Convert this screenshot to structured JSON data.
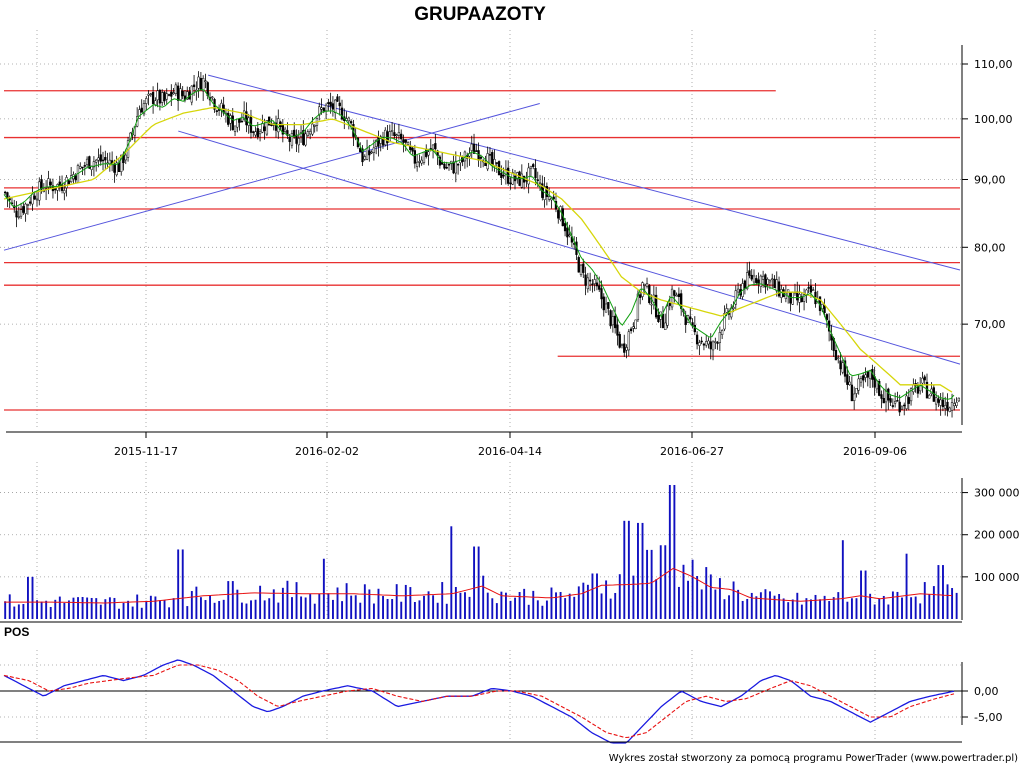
{
  "title": "GRUPAAZOTY",
  "footer": "Wykres został stworzony za pomocą programu PowerTrader (www.powertrader.pl)",
  "colors": {
    "resistance": "#e83030",
    "trendline": "#5555dd",
    "sma": "#d6d60a",
    "ema": "#10a010",
    "volume_bar": "#1010c0",
    "volume_avg": "#e81010",
    "pos_line": "#1a1ae0",
    "pos_signal": "#e81010"
  },
  "chart_data": [
    {
      "type": "candlestick",
      "title": "GRUPAAZOTY",
      "x_labels": [
        "2015-11-17",
        "2016-02-02",
        "2016-04-14",
        "2016-06-27",
        "2016-09-06"
      ],
      "y_ticks": [
        "70,00",
        "80,00",
        "90,00",
        "100,00",
        "110,00"
      ],
      "y_tick_values": [
        70,
        80,
        90,
        100,
        110
      ],
      "scale": "log",
      "grid": true,
      "close_series": [
        [
          0,
          88
        ],
        [
          10,
          85
        ],
        [
          20,
          86
        ],
        [
          30,
          88
        ],
        [
          40,
          89
        ],
        [
          55,
          89
        ],
        [
          70,
          91
        ],
        [
          85,
          93
        ],
        [
          100,
          93
        ],
        [
          115,
          92
        ],
        [
          125,
          96
        ],
        [
          135,
          102
        ],
        [
          150,
          104
        ],
        [
          160,
          103
        ],
        [
          170,
          105
        ],
        [
          180,
          104
        ],
        [
          190,
          106
        ],
        [
          200,
          107
        ],
        [
          210,
          103
        ],
        [
          220,
          101
        ],
        [
          230,
          99
        ],
        [
          240,
          100
        ],
        [
          250,
          98
        ],
        [
          260,
          99
        ],
        [
          270,
          100
        ],
        [
          280,
          97
        ],
        [
          290,
          96
        ],
        [
          300,
          97
        ],
        [
          310,
          100
        ],
        [
          320,
          102
        ],
        [
          330,
          102
        ],
        [
          340,
          101
        ],
        [
          350,
          98
        ],
        [
          360,
          93
        ],
        [
          370,
          95
        ],
        [
          380,
          97
        ],
        [
          390,
          97
        ],
        [
          400,
          96
        ],
        [
          410,
          93
        ],
        [
          420,
          94
        ],
        [
          430,
          95
        ],
        [
          440,
          92
        ],
        [
          450,
          92
        ],
        [
          460,
          93
        ],
        [
          470,
          95
        ],
        [
          480,
          94
        ],
        [
          490,
          92
        ],
        [
          500,
          91
        ],
        [
          510,
          90
        ],
        [
          520,
          90
        ],
        [
          530,
          91
        ],
        [
          540,
          88
        ],
        [
          550,
          87
        ],
        [
          560,
          84
        ],
        [
          570,
          80
        ],
        [
          580,
          76
        ],
        [
          590,
          75
        ],
        [
          600,
          73
        ],
        [
          610,
          70
        ],
        [
          620,
          67
        ],
        [
          630,
          70
        ],
        [
          640,
          75
        ],
        [
          650,
          73
        ],
        [
          660,
          70
        ],
        [
          670,
          74
        ],
        [
          680,
          72
        ],
        [
          690,
          69
        ],
        [
          700,
          68
        ],
        [
          710,
          67
        ],
        [
          720,
          70
        ],
        [
          730,
          72
        ],
        [
          740,
          75
        ],
        [
          750,
          76
        ],
        [
          760,
          76
        ],
        [
          770,
          75
        ],
        [
          780,
          74
        ],
        [
          790,
          73
        ],
        [
          800,
          73
        ],
        [
          810,
          74
        ],
        [
          820,
          72
        ],
        [
          830,
          68
        ],
        [
          840,
          65
        ],
        [
          850,
          62
        ],
        [
          860,
          63
        ],
        [
          870,
          64
        ],
        [
          880,
          62
        ],
        [
          890,
          61
        ],
        [
          900,
          61
        ],
        [
          910,
          62
        ],
        [
          920,
          63
        ],
        [
          930,
          62
        ],
        [
          940,
          61
        ],
        [
          950,
          61
        ],
        [
          955,
          62
        ]
      ],
      "sma_series": [
        [
          0,
          87
        ],
        [
          30,
          88
        ],
        [
          60,
          89
        ],
        [
          90,
          90
        ],
        [
          120,
          94
        ],
        [
          150,
          99
        ],
        [
          180,
          101
        ],
        [
          210,
          102
        ],
        [
          240,
          101
        ],
        [
          270,
          99
        ],
        [
          300,
          99
        ],
        [
          330,
          100
        ],
        [
          360,
          98
        ],
        [
          390,
          96
        ],
        [
          420,
          95
        ],
        [
          450,
          94
        ],
        [
          480,
          93
        ],
        [
          510,
          91
        ],
        [
          540,
          89
        ],
        [
          560,
          87
        ],
        [
          580,
          84
        ],
        [
          600,
          80
        ],
        [
          620,
          76
        ],
        [
          640,
          74
        ],
        [
          660,
          73
        ],
        [
          690,
          72
        ],
        [
          720,
          71
        ],
        [
          740,
          72
        ],
        [
          760,
          73
        ],
        [
          780,
          74
        ],
        [
          800,
          74
        ],
        [
          820,
          73
        ],
        [
          840,
          70
        ],
        [
          860,
          67
        ],
        [
          880,
          65
        ],
        [
          900,
          63
        ],
        [
          920,
          63
        ],
        [
          940,
          63
        ],
        [
          955,
          62
        ]
      ],
      "resistance_levels": [
        {
          "value": 105.0,
          "from": 0,
          "to": 775
        },
        {
          "value": 96.8,
          "from": 0,
          "to": 960
        },
        {
          "value": 88.7,
          "from": 0,
          "to": 960
        },
        {
          "value": 85.5,
          "from": 0,
          "to": 960
        },
        {
          "value": 77.9,
          "from": 0,
          "to": 960
        },
        {
          "value": 74.9,
          "from": 0,
          "to": 960
        },
        {
          "value": 66.2,
          "from": 556,
          "to": 960
        },
        {
          "value": 60.3,
          "from": 0,
          "to": 960
        }
      ],
      "trendlines": [
        {
          "from": [
            0,
            79.6
          ],
          "to": [
            538,
            102.7
          ]
        },
        {
          "from": [
            205,
            107.9
          ],
          "to": [
            960,
            76.9
          ]
        },
        {
          "from": [
            175,
            97.9
          ],
          "to": [
            960,
            65.3
          ]
        }
      ]
    },
    {
      "type": "bar",
      "title": "",
      "y_ticks": [
        "100 000",
        "200 000",
        "300 000"
      ],
      "y_tick_values": [
        100000,
        200000,
        300000
      ],
      "grid": true,
      "notable_spikes": [
        [
          25,
          100000
        ],
        [
          177,
          165000
        ],
        [
          226,
          90000
        ],
        [
          320,
          143000
        ],
        [
          447,
          220000
        ],
        [
          472,
          172000
        ],
        [
          592,
          108000
        ],
        [
          623,
          233000
        ],
        [
          637,
          228000
        ],
        [
          646,
          164000
        ],
        [
          660,
          175000
        ],
        [
          670,
          318000
        ],
        [
          842,
          187000
        ],
        [
          862,
          115000
        ],
        [
          904,
          155000
        ],
        [
          940,
          128000
        ]
      ],
      "moving_average": [
        [
          0,
          40000
        ],
        [
          50,
          40000
        ],
        [
          100,
          38000
        ],
        [
          150,
          42000
        ],
        [
          200,
          55000
        ],
        [
          250,
          62000
        ],
        [
          300,
          60000
        ],
        [
          350,
          60000
        ],
        [
          400,
          55000
        ],
        [
          450,
          60000
        ],
        [
          480,
          78000
        ],
        [
          500,
          55000
        ],
        [
          550,
          50000
        ],
        [
          580,
          60000
        ],
        [
          600,
          80000
        ],
        [
          630,
          82000
        ],
        [
          650,
          85000
        ],
        [
          672,
          120000
        ],
        [
          690,
          102000
        ],
        [
          710,
          75000
        ],
        [
          730,
          70000
        ],
        [
          750,
          50000
        ],
        [
          800,
          42000
        ],
        [
          840,
          48000
        ],
        [
          860,
          55000
        ],
        [
          880,
          48000
        ],
        [
          920,
          60000
        ],
        [
          955,
          55000
        ]
      ]
    },
    {
      "type": "line",
      "title": "POS",
      "y_ticks": [
        "0,00",
        "-5,00"
      ],
      "y_tick_values": [
        0,
        -5
      ],
      "grid": true,
      "series": [
        {
          "values": [
            [
              0,
              3
            ],
            [
              20,
              1
            ],
            [
              40,
              -1
            ],
            [
              60,
              1
            ],
            [
              80,
              2
            ],
            [
              100,
              3
            ],
            [
              120,
              2
            ],
            [
              140,
              3
            ],
            [
              160,
              5
            ],
            [
              175,
              6
            ],
            [
              190,
              5
            ],
            [
              210,
              3
            ],
            [
              230,
              0
            ],
            [
              250,
              -3
            ],
            [
              265,
              -4
            ],
            [
              280,
              -3
            ],
            [
              300,
              -1
            ],
            [
              320,
              0
            ],
            [
              345,
              1
            ],
            [
              370,
              0
            ],
            [
              395,
              -3
            ],
            [
              420,
              -2
            ],
            [
              445,
              -1
            ],
            [
              470,
              -1
            ],
            [
              490,
              0.5
            ],
            [
              510,
              0
            ],
            [
              530,
              -1
            ],
            [
              550,
              -3
            ],
            [
              570,
              -5
            ],
            [
              590,
              -8
            ],
            [
              610,
              -10
            ],
            [
              625,
              -10
            ],
            [
              640,
              -7
            ],
            [
              660,
              -3
            ],
            [
              680,
              0
            ],
            [
              700,
              -2
            ],
            [
              720,
              -3
            ],
            [
              740,
              -1
            ],
            [
              760,
              2
            ],
            [
              775,
              3
            ],
            [
              790,
              2
            ],
            [
              810,
              -1
            ],
            [
              830,
              -2
            ],
            [
              850,
              -4
            ],
            [
              870,
              -6
            ],
            [
              890,
              -4
            ],
            [
              910,
              -2
            ],
            [
              930,
              -1
            ],
            [
              955,
              0
            ]
          ]
        },
        {
          "values": [
            [
              0,
              3
            ],
            [
              25,
              2
            ],
            [
              45,
              0
            ],
            [
              65,
              0.5
            ],
            [
              85,
              1.5
            ],
            [
              105,
              2
            ],
            [
              125,
              2.5
            ],
            [
              150,
              3
            ],
            [
              175,
              5
            ],
            [
              195,
              5
            ],
            [
              215,
              4
            ],
            [
              235,
              2
            ],
            [
              255,
              -1
            ],
            [
              275,
              -3
            ],
            [
              295,
              -2
            ],
            [
              320,
              -1
            ],
            [
              345,
              0
            ],
            [
              370,
              0.5
            ],
            [
              395,
              -1
            ],
            [
              420,
              -2
            ],
            [
              445,
              -1
            ],
            [
              470,
              -1
            ],
            [
              495,
              0
            ],
            [
              515,
              0
            ],
            [
              540,
              -1
            ],
            [
              560,
              -3
            ],
            [
              580,
              -5
            ],
            [
              605,
              -8
            ],
            [
              625,
              -9
            ],
            [
              645,
              -8
            ],
            [
              665,
              -5
            ],
            [
              685,
              -2
            ],
            [
              705,
              -1
            ],
            [
              725,
              -2
            ],
            [
              745,
              -1.5
            ],
            [
              770,
              0.5
            ],
            [
              790,
              2
            ],
            [
              810,
              1
            ],
            [
              830,
              -1
            ],
            [
              850,
              -3
            ],
            [
              870,
              -5
            ],
            [
              890,
              -5
            ],
            [
              910,
              -3
            ],
            [
              935,
              -1.5
            ],
            [
              955,
              -0.5
            ]
          ]
        }
      ]
    }
  ]
}
